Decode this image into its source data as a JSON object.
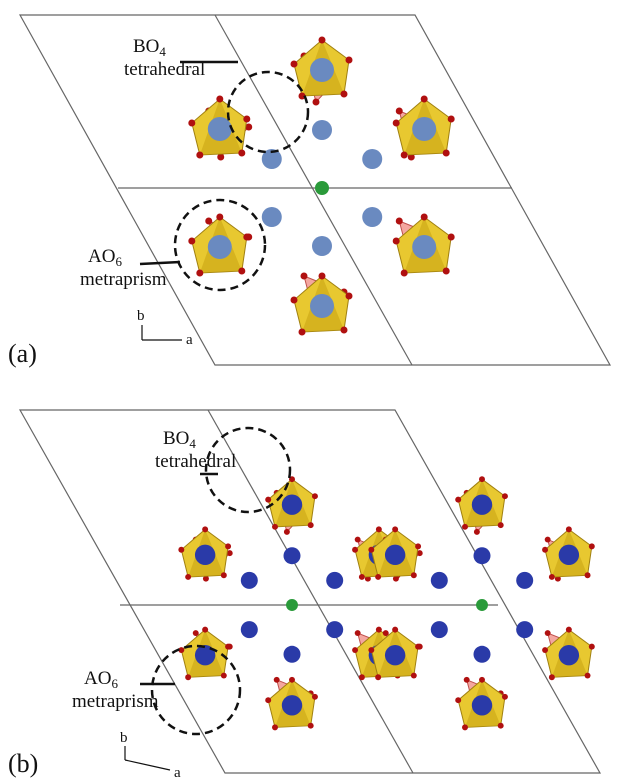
{
  "panels": [
    {
      "label": "(a)",
      "tetrahedral": {
        "formula": "BO",
        "subscript": "4",
        "name": "tetrahedral"
      },
      "metaprism": {
        "formula": "AO",
        "subscript": "6",
        "name": "metraprism"
      },
      "axes": {
        "b": "b",
        "a": "a"
      }
    },
    {
      "label": "(b)",
      "tetrahedral": {
        "formula": "BO",
        "subscript": "4",
        "name": "tetrahedral"
      },
      "metaprism": {
        "formula": "AO",
        "subscript": "6",
        "name": "metraprism"
      },
      "axes": {
        "b": "b",
        "a": "a"
      }
    }
  ]
}
